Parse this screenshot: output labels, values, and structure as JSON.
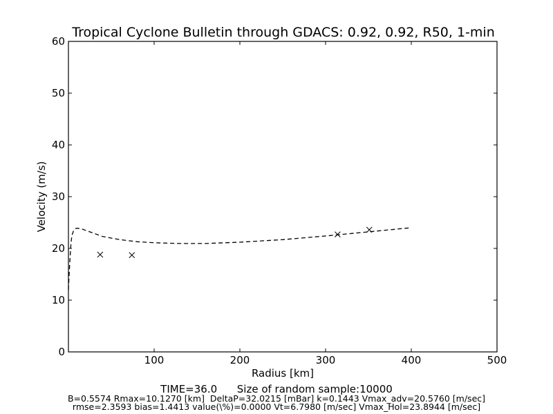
{
  "chart_data": {
    "type": "line",
    "title": "Tropical Cyclone Bulletin through GDACS: 0.92, 0.92, R50, 1-min",
    "xlabel": "Radius [km]",
    "ylabel": "Velocity (m/s)",
    "xlim": [
      0,
      500
    ],
    "ylim": [
      0,
      60
    ],
    "xticks": [
      100,
      200,
      300,
      400,
      500
    ],
    "yticks": [
      0,
      10,
      20,
      30,
      40,
      50,
      60
    ],
    "grid": false,
    "series": [
      {
        "style": "dashed-line",
        "color": "#000000",
        "x": [
          0,
          1,
          2,
          3,
          4,
          6,
          8,
          10,
          15,
          20,
          30,
          40,
          60,
          80,
          100,
          130,
          160,
          200,
          250,
          300,
          350,
          400
        ],
        "y": [
          12.0,
          15.5,
          18.5,
          21.0,
          22.5,
          23.4,
          23.8,
          23.9,
          23.8,
          23.5,
          22.9,
          22.3,
          21.7,
          21.3,
          21.1,
          20.95,
          20.95,
          21.2,
          21.7,
          22.4,
          23.2,
          24.0
        ]
      },
      {
        "style": "x-markers",
        "color": "#000000",
        "x": [
          37,
          74,
          314,
          351
        ],
        "y": [
          18.8,
          18.7,
          22.7,
          23.6
        ]
      }
    ]
  },
  "footer": {
    "time_label": "TIME=36.0",
    "sample_label": "Size of random sample:10000",
    "params": "B=0.5574 Rmax=10.1270 [km]  DeltaP=32.0215 [mBar] k=0.1443 Vmax_adv=20.5760 [m/sec]",
    "stats": "rmse=2.3593 bias=1.4413 value(\\%)=0.0000 Vt=6.7980 [m/sec] Vmax_Hol=23.8944 [m/sec]"
  }
}
